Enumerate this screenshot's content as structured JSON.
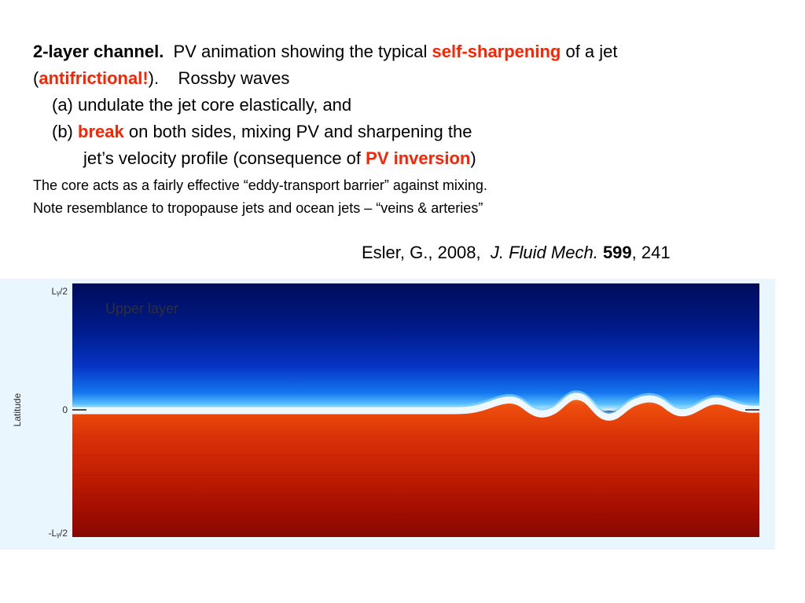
{
  "slide": {
    "line1": {
      "title": "2-layer channel.",
      "text_a": "PV animation showing the typical",
      "highlight": "self-sharpening",
      "text_b": "of a jet"
    },
    "line2": {
      "open_paren": "(",
      "highlight": "antifrictional!",
      "text": ").    Rossby waves"
    },
    "line3": "(a) undulate the jet core elastically, and",
    "line4": {
      "text_a": "(b)",
      "highlight": "break",
      "text_b": "on both sides, mixing PV and sharpening the"
    },
    "line5": {
      "text_a": "jet’s velocity profile (consequence of",
      "highlight": "PV inversion",
      "close_paren": ")"
    },
    "line6": "The core acts as a fairly effective “eddy-transport barrier” against mixing.",
    "line7": "Note resemblance to tropopause jets and ocean jets  –  “veins &  arteries”",
    "citation": {
      "authors": "Esler, G., 2008,",
      "journal": "J. Fluid Mech.",
      "volume": "599",
      "pages": ", 241"
    }
  },
  "figure": {
    "panel_label": "Upper layer",
    "y_axis_label": "Latitude",
    "y_ticks": [
      "Lᵧ/2",
      "0",
      "-Lᵧ/2"
    ],
    "colors": {
      "upper_dark": "#000c5c",
      "upper_mid": "#0a3ad0",
      "jet_light": "#e8f6ff",
      "lower_orange": "#ee5a10",
      "lower_dark": "#8a0a00",
      "background": "#eaf6fe"
    }
  }
}
